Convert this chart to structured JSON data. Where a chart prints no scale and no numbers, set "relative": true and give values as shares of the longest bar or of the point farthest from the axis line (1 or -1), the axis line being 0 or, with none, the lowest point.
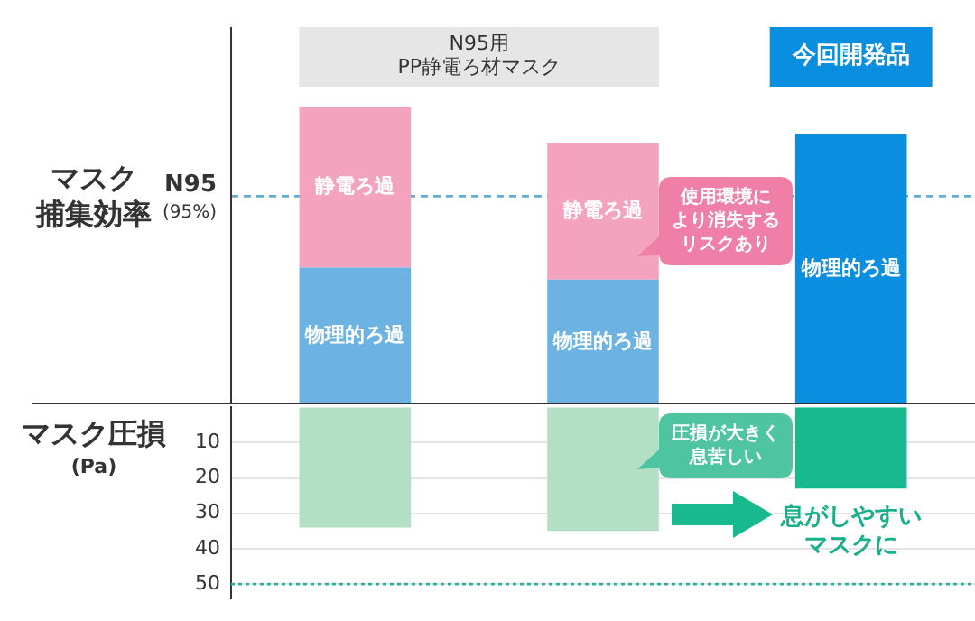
{
  "chart_data": [
    {
      "type": "bar",
      "stacked": true,
      "relative": true,
      "tick_labels": "x",
      "ylabel": "マスク捕集効率",
      "categories": [
        null,
        null,
        "今回開発品"
      ],
      "series": [
        {
          "name": "物理的ろ過",
          "colors": [
            "#6cb3e3",
            "#6cb3e3",
            "#0a8fe0"
          ],
          "values": [
            0.46,
            0.42,
            0.91
          ]
        },
        {
          "name": "静電ろ過",
          "colors": [
            "#f4a3bf",
            "#f4a3bf",
            "#f4a3bf"
          ],
          "values": [
            0.54,
            0.46,
            null
          ]
        }
      ],
      "ref_lines": [
        {
          "axis": "y",
          "value": 0.7,
          "label": "N95\n(95%)",
          "color": "#5fb0d0",
          "line_style": "dashed"
        }
      ],
      "annotations": [
        "N95用\nPP静電ろ材マスク",
        "使用環境により消失するリスクあり"
      ]
    },
    {
      "type": "bar",
      "tick_labels": "y",
      "ylabel": "マスク圧損\n(Pa)",
      "categories": [
        null,
        null,
        null
      ],
      "values": [
        34,
        35,
        23
      ],
      "colors": [
        "#b3dfc4",
        "#b3dfc4",
        "#18b98f"
      ],
      "ylim": [
        54,
        0
      ],
      "yticks": [
        10,
        20,
        30,
        40,
        50
      ],
      "grid": "y",
      "ref_lines": [
        {
          "axis": "y",
          "value": 50,
          "color": "#2bb3a0",
          "line_style": "dotted"
        }
      ],
      "annotations": [
        "圧損が大きく息苦しい",
        "息がしやすいマスクに"
      ]
    }
  ]
}
